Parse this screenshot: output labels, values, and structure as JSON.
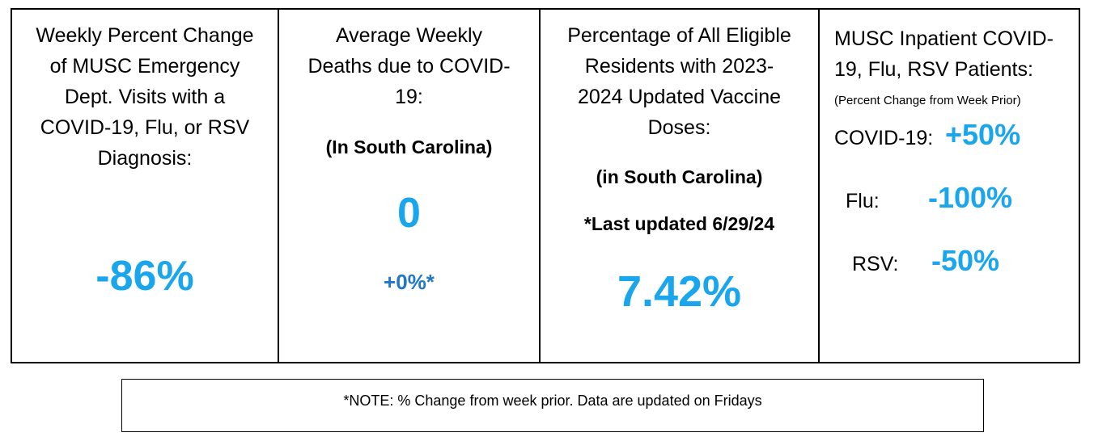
{
  "panel1": {
    "title_lines": [
      "Weekly Percent Change",
      "of MUSC Emergency",
      "Dept. Visits with a",
      "COVID-19, Flu, or RSV",
      "Diagnosis:"
    ],
    "value": "-86%"
  },
  "panel2": {
    "title_lines": [
      "Average Weekly",
      "Deaths due to COVID-",
      "19:"
    ],
    "region": "(In South Carolina)",
    "value": "0",
    "change": "+0%*"
  },
  "panel3": {
    "title_lines": [
      "Percentage of All Eligible",
      "Residents with 2023-",
      "2024 Updated Vaccine",
      "Doses:"
    ],
    "region": "(in South Carolina)",
    "updated": "*Last updated 6/29/24",
    "value": "7.42%"
  },
  "panel4": {
    "title_lines": [
      "MUSC Inpatient COVID-",
      "19, Flu, RSV Patients:"
    ],
    "subtitle": "(Percent Change from Week Prior)",
    "rows": [
      {
        "label": "COVID-19:",
        "value": "+50%"
      },
      {
        "label": "Flu:",
        "value": "-100%"
      },
      {
        "label": "RSV:",
        "value": "-50%"
      }
    ]
  },
  "note": "*NOTE: % Change from week prior. Data are updated on Fridays",
  "colors": {
    "accent_light_blue": "#1aa6ec",
    "accent_dark_blue": "#2077c9"
  }
}
